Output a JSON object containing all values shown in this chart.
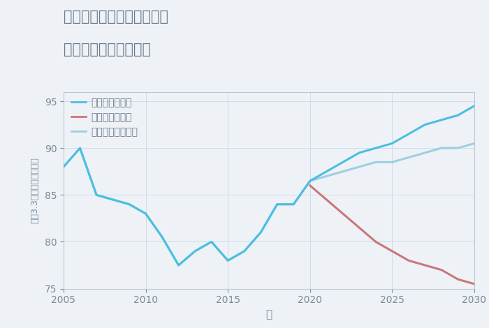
{
  "title_line1": "千葉県習志野市東習志野の",
  "title_line2": "中古戸建ての価格推移",
  "xlabel": "年",
  "ylabel": "坪（3.3㎡）単価（万円）",
  "background_color": "#eef2f7",
  "plot_bg_color": "#eef2f7",
  "ylim": [
    75,
    96
  ],
  "xlim": [
    2005,
    2030
  ],
  "yticks": [
    75,
    80,
    85,
    90,
    95
  ],
  "xticks": [
    2005,
    2010,
    2015,
    2020,
    2025,
    2030
  ],
  "good_x": [
    2005,
    2006,
    2007,
    2008,
    2009,
    2010,
    2011,
    2012,
    2013,
    2014,
    2015,
    2016,
    2017,
    2018,
    2019,
    2020,
    2021,
    2022,
    2023,
    2024,
    2025,
    2026,
    2027,
    2028,
    2029,
    2030
  ],
  "good_y": [
    88.0,
    90.0,
    85.0,
    84.5,
    84.0,
    83.0,
    80.5,
    77.5,
    79.0,
    80.0,
    78.0,
    79.0,
    81.0,
    84.0,
    84.0,
    86.5,
    87.5,
    88.5,
    89.5,
    90.0,
    90.5,
    91.5,
    92.5,
    93.0,
    93.5,
    94.5
  ],
  "bad_x": [
    2020,
    2021,
    2022,
    2023,
    2024,
    2025,
    2026,
    2027,
    2028,
    2029,
    2030
  ],
  "bad_y": [
    86.0,
    84.5,
    83.0,
    81.5,
    80.0,
    79.0,
    78.0,
    77.5,
    77.0,
    76.0,
    75.5
  ],
  "normal_x": [
    2005,
    2006,
    2007,
    2008,
    2009,
    2010,
    2011,
    2012,
    2013,
    2014,
    2015,
    2016,
    2017,
    2018,
    2019,
    2020,
    2021,
    2022,
    2023,
    2024,
    2025,
    2026,
    2027,
    2028,
    2029,
    2030
  ],
  "normal_y": [
    88.0,
    90.0,
    85.0,
    84.5,
    84.0,
    83.0,
    80.5,
    77.5,
    79.0,
    80.0,
    78.0,
    79.0,
    81.0,
    84.0,
    84.0,
    86.5,
    87.0,
    87.5,
    88.0,
    88.5,
    88.5,
    89.0,
    89.5,
    90.0,
    90.0,
    90.5
  ],
  "good_color": "#4bbfe0",
  "bad_color": "#c87878",
  "normal_color": "#9ecfe0",
  "good_label": "グッドシナリオ",
  "bad_label": "バッドシナリオ",
  "normal_label": "ノーマルシナリオ",
  "line_width": 2.2,
  "grid_color": "#ccdde8",
  "title_color": "#6a7a8a",
  "tick_color": "#7a8a9a",
  "axis_color": "#b8c8d8",
  "legend_color": "#6a7a8a"
}
